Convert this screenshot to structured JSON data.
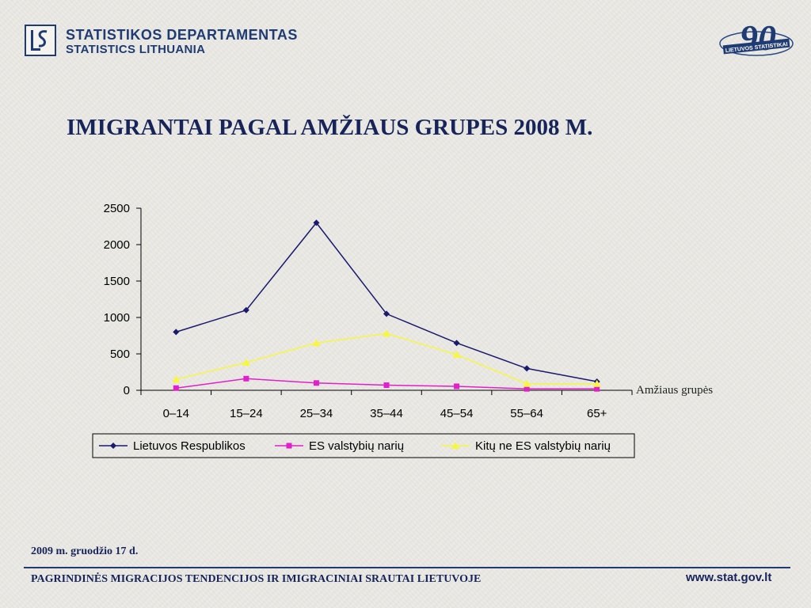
{
  "header": {
    "logo_line1": "STATISTIKOS DEPARTAMENTAS",
    "logo_line2": "STATISTICS LITHUANIA",
    "anniversary_number": "90",
    "anniversary_text": "LIETUVOS STATISTIKAI"
  },
  "title": "IMIGRANTAI PAGAL AMŽIAUS GRUPES  2008 M.",
  "chart_data": {
    "type": "line",
    "title": "",
    "xlabel": "Amžiaus grupės",
    "ylabel": "",
    "categories": [
      "0–14",
      "15–24",
      "25–34",
      "35–44",
      "45–54",
      "55–64",
      "65+"
    ],
    "ylim": [
      0,
      2500
    ],
    "yticks": [
      "0",
      "500",
      "1000",
      "1500",
      "2000",
      "2500"
    ],
    "grid": false,
    "legend_position": "bottom",
    "series": [
      {
        "name": "Lietuvos Respublikos",
        "values": [
          800,
          1100,
          2300,
          1050,
          650,
          300,
          120
        ],
        "color": "#1a1a6e",
        "marker": "diamond"
      },
      {
        "name": "ES valstybių narių",
        "values": [
          30,
          160,
          100,
          70,
          55,
          20,
          20
        ],
        "color": "#e020c8",
        "marker": "square"
      },
      {
        "name": "Kitų ne ES valstybių narių",
        "values": [
          150,
          380,
          650,
          780,
          490,
          90,
          90
        ],
        "color": "#f7f740",
        "marker": "triangle"
      }
    ]
  },
  "footer": {
    "date": "2009 m. gruodžio 17 d.",
    "title": "PAGRINDINĖS MIGRACIJOS TENDENCIJOS IR IMIGRACINIAI SRAUTAI LIETUVOJE",
    "url": "www.stat.gov.lt"
  }
}
